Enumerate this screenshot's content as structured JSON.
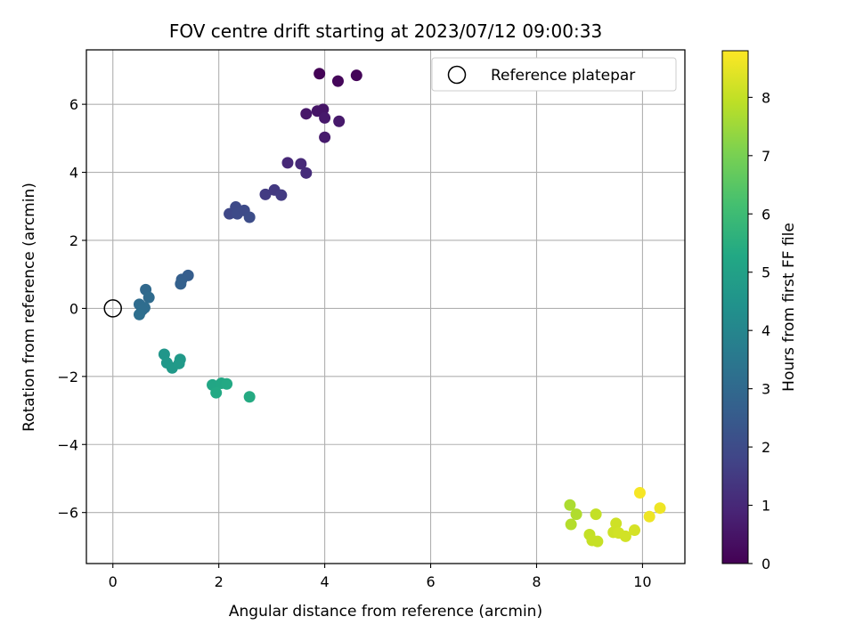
{
  "chart_data": {
    "type": "scatter",
    "title": "FOV centre drift starting at 2023/07/12 09:00:33",
    "xlabel": "Angular distance from reference (arcmin)",
    "ylabel": "Rotation from reference (arcmin)",
    "xlim": [
      -0.5,
      10.8
    ],
    "ylim": [
      -7.5,
      7.6
    ],
    "xticks": [
      0,
      2,
      4,
      6,
      8,
      10
    ],
    "yticks": [
      -6,
      -4,
      -2,
      0,
      2,
      4,
      6
    ],
    "grid": true,
    "legend": {
      "position": "top-right",
      "entries": [
        {
          "label": "Reference platepar",
          "marker": "open-circle",
          "color": "#000000"
        }
      ]
    },
    "reference_point": {
      "x": 0,
      "y": 0
    },
    "colorbar": {
      "label": "Hours from first FF file",
      "colormap": "viridis",
      "range": [
        0,
        8.8
      ],
      "ticks": [
        0,
        1,
        2,
        3,
        4,
        5,
        6,
        7,
        8
      ]
    },
    "points": [
      {
        "x": 3.9,
        "y": 6.9,
        "t": 0.05
      },
      {
        "x": 4.6,
        "y": 6.85,
        "t": 0.1
      },
      {
        "x": 4.25,
        "y": 6.68,
        "t": 0.15
      },
      {
        "x": 3.86,
        "y": 5.8,
        "t": 0.5
      },
      {
        "x": 3.65,
        "y": 5.72,
        "t": 0.55
      },
      {
        "x": 3.97,
        "y": 5.85,
        "t": 0.5
      },
      {
        "x": 4.0,
        "y": 5.6,
        "t": 0.6
      },
      {
        "x": 4.27,
        "y": 5.5,
        "t": 0.6
      },
      {
        "x": 4.0,
        "y": 5.03,
        "t": 0.65
      },
      {
        "x": 3.3,
        "y": 4.28,
        "t": 1.0
      },
      {
        "x": 3.55,
        "y": 4.25,
        "t": 1.05
      },
      {
        "x": 3.65,
        "y": 3.98,
        "t": 1.1
      },
      {
        "x": 2.88,
        "y": 3.35,
        "t": 1.5
      },
      {
        "x": 3.05,
        "y": 3.48,
        "t": 1.45
      },
      {
        "x": 3.18,
        "y": 3.33,
        "t": 1.5
      },
      {
        "x": 2.2,
        "y": 2.78,
        "t": 1.9
      },
      {
        "x": 2.32,
        "y": 2.98,
        "t": 1.95
      },
      {
        "x": 2.35,
        "y": 2.78,
        "t": 2.0
      },
      {
        "x": 2.48,
        "y": 2.88,
        "t": 2.0
      },
      {
        "x": 2.58,
        "y": 2.68,
        "t": 2.05
      },
      {
        "x": 1.42,
        "y": 0.97,
        "t": 2.6
      },
      {
        "x": 1.3,
        "y": 0.85,
        "t": 2.65
      },
      {
        "x": 1.28,
        "y": 0.72,
        "t": 2.7
      },
      {
        "x": 0.62,
        "y": 0.55,
        "t": 3.0
      },
      {
        "x": 0.68,
        "y": 0.32,
        "t": 3.05
      },
      {
        "x": 0.5,
        "y": 0.12,
        "t": 3.1
      },
      {
        "x": 0.6,
        "y": 0.02,
        "t": 3.15
      },
      {
        "x": 0.55,
        "y": -0.05,
        "t": 3.15
      },
      {
        "x": 0.5,
        "y": -0.18,
        "t": 3.2
      },
      {
        "x": 0.97,
        "y": -1.35,
        "t": 4.6
      },
      {
        "x": 1.02,
        "y": -1.6,
        "t": 4.65
      },
      {
        "x": 1.12,
        "y": -1.75,
        "t": 4.7
      },
      {
        "x": 1.27,
        "y": -1.5,
        "t": 4.7
      },
      {
        "x": 1.25,
        "y": -1.62,
        "t": 4.75
      },
      {
        "x": 1.88,
        "y": -2.25,
        "t": 5.2
      },
      {
        "x": 2.05,
        "y": -2.2,
        "t": 5.25
      },
      {
        "x": 2.15,
        "y": -2.22,
        "t": 5.3
      },
      {
        "x": 1.95,
        "y": -2.48,
        "t": 5.3
      },
      {
        "x": 2.58,
        "y": -2.6,
        "t": 5.35
      },
      {
        "x": 8.63,
        "y": -5.78,
        "t": 7.7
      },
      {
        "x": 8.75,
        "y": -6.05,
        "t": 7.75
      },
      {
        "x": 8.65,
        "y": -6.35,
        "t": 7.8
      },
      {
        "x": 9.12,
        "y": -6.05,
        "t": 8.0
      },
      {
        "x": 9.0,
        "y": -6.65,
        "t": 8.0
      },
      {
        "x": 9.05,
        "y": -6.82,
        "t": 8.05
      },
      {
        "x": 9.15,
        "y": -6.85,
        "t": 8.05
      },
      {
        "x": 9.5,
        "y": -6.32,
        "t": 8.15
      },
      {
        "x": 9.45,
        "y": -6.58,
        "t": 8.15
      },
      {
        "x": 9.55,
        "y": -6.6,
        "t": 8.2
      },
      {
        "x": 9.68,
        "y": -6.7,
        "t": 8.2
      },
      {
        "x": 9.85,
        "y": -6.52,
        "t": 8.25
      },
      {
        "x": 9.95,
        "y": -5.42,
        "t": 8.7
      },
      {
        "x": 10.13,
        "y": -6.12,
        "t": 8.6
      },
      {
        "x": 10.33,
        "y": -5.87,
        "t": 8.6
      }
    ]
  }
}
